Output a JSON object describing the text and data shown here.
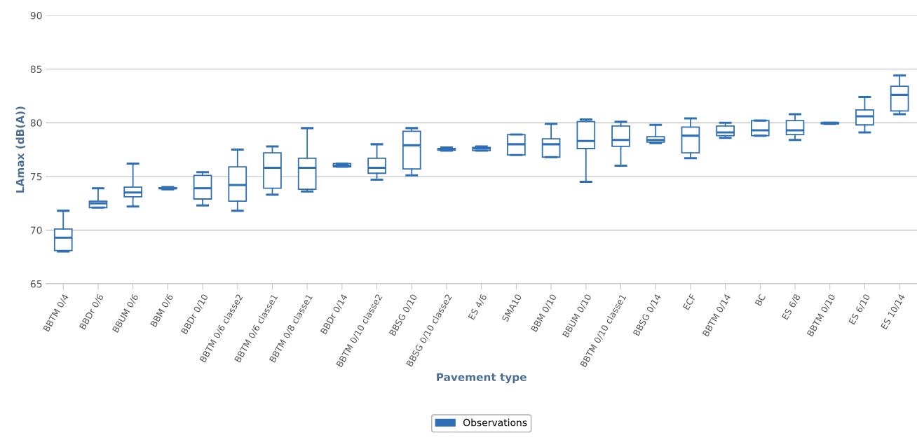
{
  "chart_data": {
    "type": "box",
    "xlabel": "Pavement type",
    "ylabel": "LAmax (dB(A))",
    "categories": [
      "BBTM 0/4",
      "BBDr 0/6",
      "BBUM 0/6",
      "BBM 0/6",
      "BBDr 0/10",
      "BBTM 0/6 classe2",
      "BBTM 0/6 classe1",
      "BBTM 0/8 classe1",
      "BBDr 0/14",
      "BBTM 0/10 classe2",
      "BBSG 0/10",
      "BBSG 0/10 classe2",
      "ES 4/6",
      "SMA10",
      "BBM 0/10",
      "BBUM 0/10",
      "BBTM 0/10 classe1",
      "BBSG 0/14",
      "ECF",
      "BBTM 0/14",
      "BC",
      "ES 6/8",
      "BBTM 0/10",
      "ES 6/10",
      "ES 10/14"
    ],
    "series": [
      {
        "name": "Observations",
        "color": "#2f6fb5",
        "boxes": [
          {
            "low": 68.0,
            "q1": 68.1,
            "median": 69.3,
            "q3": 70.1,
            "high": 71.8
          },
          {
            "low": 72.1,
            "q1": 72.1,
            "median": 72.5,
            "q3": 72.7,
            "high": 73.9
          },
          {
            "low": 72.2,
            "q1": 73.1,
            "median": 73.5,
            "q3": 74.0,
            "high": 76.2
          },
          {
            "low": 73.8,
            "q1": 73.85,
            "median": 73.9,
            "q3": 73.95,
            "high": 74.0
          },
          {
            "low": 72.3,
            "q1": 72.9,
            "median": 73.9,
            "q3": 75.1,
            "high": 75.4
          },
          {
            "low": 71.8,
            "q1": 72.7,
            "median": 74.2,
            "q3": 75.9,
            "high": 77.5
          },
          {
            "low": 73.3,
            "q1": 73.9,
            "median": 75.8,
            "q3": 77.2,
            "high": 77.8
          },
          {
            "low": 73.6,
            "q1": 73.8,
            "median": 75.8,
            "q3": 76.7,
            "high": 79.5
          },
          {
            "low": 75.9,
            "q1": 75.9,
            "median": 76.0,
            "q3": 76.2,
            "high": 76.2
          },
          {
            "low": 74.7,
            "q1": 75.3,
            "median": 75.8,
            "q3": 76.7,
            "high": 78.0
          },
          {
            "low": 75.1,
            "q1": 75.7,
            "median": 77.9,
            "q3": 79.2,
            "high": 79.5
          },
          {
            "low": 77.4,
            "q1": 77.45,
            "median": 77.5,
            "q3": 77.6,
            "high": 77.7
          },
          {
            "low": 77.4,
            "q1": 77.4,
            "median": 77.6,
            "q3": 77.7,
            "high": 77.8
          },
          {
            "low": 77.0,
            "q1": 77.0,
            "median": 78.0,
            "q3": 78.9,
            "high": 78.9
          },
          {
            "low": 76.8,
            "q1": 76.8,
            "median": 78.0,
            "q3": 78.5,
            "high": 79.9
          },
          {
            "low": 74.5,
            "q1": 77.6,
            "median": 78.3,
            "q3": 80.1,
            "high": 80.3
          },
          {
            "low": 76.0,
            "q1": 77.8,
            "median": 78.4,
            "q3": 79.7,
            "high": 80.1
          },
          {
            "low": 78.1,
            "q1": 78.2,
            "median": 78.4,
            "q3": 78.7,
            "high": 79.8
          },
          {
            "low": 76.7,
            "q1": 77.2,
            "median": 78.8,
            "q3": 79.6,
            "high": 80.4
          },
          {
            "low": 78.6,
            "q1": 78.8,
            "median": 79.1,
            "q3": 79.7,
            "high": 80.0
          },
          {
            "low": 78.8,
            "q1": 78.8,
            "median": 79.3,
            "q3": 80.2,
            "high": 80.2
          },
          {
            "low": 78.4,
            "q1": 78.9,
            "median": 79.3,
            "q3": 80.2,
            "high": 80.8
          },
          {
            "low": 79.9,
            "q1": 79.9,
            "median": 80.0,
            "q3": 80.0,
            "high": 80.0
          },
          {
            "low": 79.1,
            "q1": 79.8,
            "median": 80.6,
            "q3": 81.2,
            "high": 82.4
          },
          {
            "low": 80.8,
            "q1": 81.1,
            "median": 82.6,
            "q3": 83.4,
            "high": 84.4
          }
        ]
      }
    ],
    "ylim": [
      65,
      90
    ],
    "yticks": [
      65,
      70,
      75,
      80,
      85,
      90
    ],
    "grid": "y",
    "legend": "bottom"
  }
}
